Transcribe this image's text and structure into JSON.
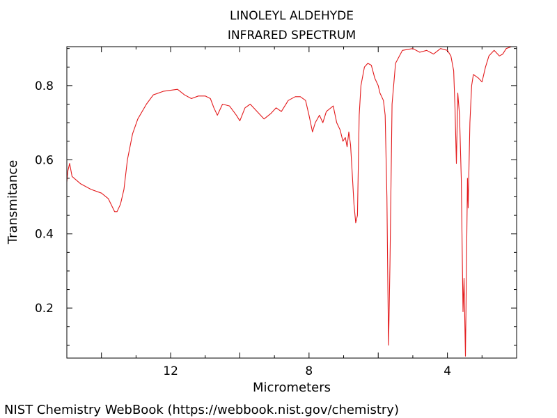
{
  "chart_data": {
    "type": "line",
    "title": "LINOLEYL ALDEHYDE",
    "subtitle": "INFRARED SPECTRUM",
    "xlabel": "Micrometers",
    "ylabel": "Transmitance",
    "xlim": [
      15,
      2
    ],
    "ylim": [
      0.065,
      0.905
    ],
    "x_ticks": [
      12,
      8,
      4
    ],
    "y_ticks": [
      0.2,
      0.4,
      0.6,
      0.8
    ],
    "grid": false,
    "series": [
      {
        "color": "#e31a1c",
        "points": [
          [
            15.0,
            0.54
          ],
          [
            14.97,
            0.57
          ],
          [
            14.92,
            0.59
          ],
          [
            14.85,
            0.555
          ],
          [
            14.6,
            0.535
          ],
          [
            14.3,
            0.52
          ],
          [
            14.0,
            0.51
          ],
          [
            13.8,
            0.495
          ],
          [
            13.62,
            0.46
          ],
          [
            13.55,
            0.46
          ],
          [
            13.45,
            0.48
          ],
          [
            13.35,
            0.52
          ],
          [
            13.25,
            0.6
          ],
          [
            13.1,
            0.67
          ],
          [
            12.95,
            0.71
          ],
          [
            12.7,
            0.75
          ],
          [
            12.5,
            0.775
          ],
          [
            12.2,
            0.785
          ],
          [
            11.8,
            0.79
          ],
          [
            11.6,
            0.775
          ],
          [
            11.4,
            0.765
          ],
          [
            11.2,
            0.772
          ],
          [
            11.0,
            0.772
          ],
          [
            10.85,
            0.765
          ],
          [
            10.75,
            0.74
          ],
          [
            10.65,
            0.72
          ],
          [
            10.5,
            0.75
          ],
          [
            10.3,
            0.745
          ],
          [
            10.1,
            0.72
          ],
          [
            10.0,
            0.705
          ],
          [
            9.85,
            0.74
          ],
          [
            9.7,
            0.75
          ],
          [
            9.5,
            0.73
          ],
          [
            9.3,
            0.71
          ],
          [
            9.1,
            0.725
          ],
          [
            8.95,
            0.74
          ],
          [
            8.8,
            0.73
          ],
          [
            8.6,
            0.76
          ],
          [
            8.4,
            0.77
          ],
          [
            8.25,
            0.77
          ],
          [
            8.1,
            0.76
          ],
          [
            8.0,
            0.72
          ],
          [
            7.9,
            0.675
          ],
          [
            7.82,
            0.7
          ],
          [
            7.7,
            0.72
          ],
          [
            7.6,
            0.7
          ],
          [
            7.5,
            0.73
          ],
          [
            7.3,
            0.745
          ],
          [
            7.2,
            0.7
          ],
          [
            7.1,
            0.68
          ],
          [
            7.02,
            0.65
          ],
          [
            6.95,
            0.66
          ],
          [
            6.9,
            0.635
          ],
          [
            6.85,
            0.675
          ],
          [
            6.8,
            0.64
          ],
          [
            6.75,
            0.56
          ],
          [
            6.7,
            0.48
          ],
          [
            6.65,
            0.43
          ],
          [
            6.6,
            0.45
          ],
          [
            6.55,
            0.72
          ],
          [
            6.5,
            0.8
          ],
          [
            6.4,
            0.85
          ],
          [
            6.3,
            0.86
          ],
          [
            6.2,
            0.855
          ],
          [
            6.1,
            0.82
          ],
          [
            6.0,
            0.8
          ],
          [
            5.95,
            0.78
          ],
          [
            5.9,
            0.77
          ],
          [
            5.85,
            0.76
          ],
          [
            5.8,
            0.72
          ],
          [
            5.75,
            0.5
          ],
          [
            5.72,
            0.25
          ],
          [
            5.7,
            0.1
          ],
          [
            5.66,
            0.32
          ],
          [
            5.6,
            0.75
          ],
          [
            5.5,
            0.86
          ],
          [
            5.3,
            0.895
          ],
          [
            5.0,
            0.9
          ],
          [
            4.8,
            0.89
          ],
          [
            4.6,
            0.895
          ],
          [
            4.4,
            0.885
          ],
          [
            4.2,
            0.9
          ],
          [
            4.0,
            0.895
          ],
          [
            3.9,
            0.88
          ],
          [
            3.82,
            0.84
          ],
          [
            3.78,
            0.74
          ],
          [
            3.74,
            0.59
          ],
          [
            3.7,
            0.78
          ],
          [
            3.65,
            0.72
          ],
          [
            3.6,
            0.55
          ],
          [
            3.55,
            0.19
          ],
          [
            3.52,
            0.28
          ],
          [
            3.48,
            0.07
          ],
          [
            3.45,
            0.3
          ],
          [
            3.42,
            0.55
          ],
          [
            3.4,
            0.47
          ],
          [
            3.35,
            0.7
          ],
          [
            3.3,
            0.8
          ],
          [
            3.25,
            0.83
          ],
          [
            3.1,
            0.82
          ],
          [
            3.0,
            0.81
          ],
          [
            2.9,
            0.85
          ],
          [
            2.8,
            0.88
          ],
          [
            2.65,
            0.895
          ],
          [
            2.5,
            0.88
          ],
          [
            2.4,
            0.885
          ],
          [
            2.3,
            0.9
          ],
          [
            2.15,
            0.905
          ],
          [
            2.0,
            0.905
          ]
        ]
      }
    ],
    "footer": "NIST Chemistry WebBook (https://webbook.nist.gov/chemistry)"
  }
}
